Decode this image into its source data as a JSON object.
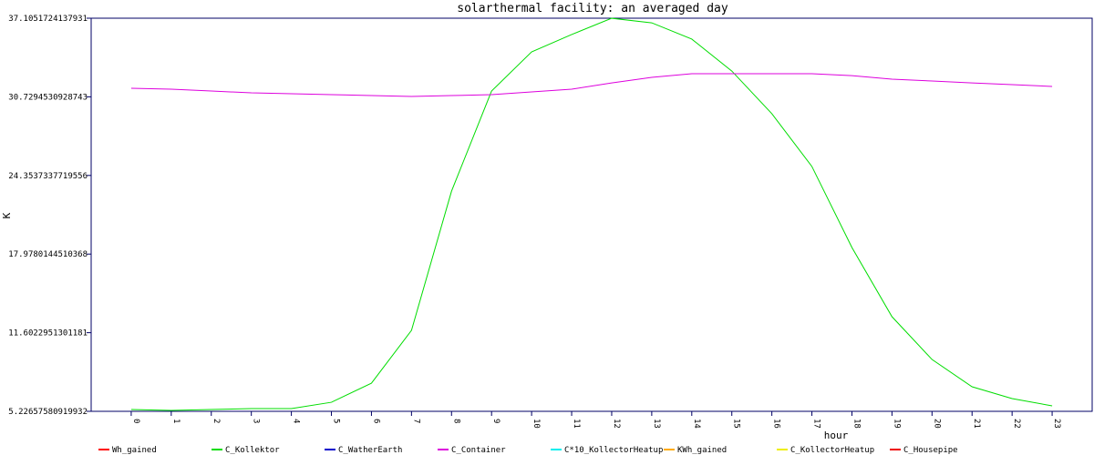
{
  "chart_data": {
    "type": "line",
    "title": "solarthermal facility: an averaged day",
    "x_label": "hour",
    "y_label": "K",
    "categories": [
      "0",
      "1",
      "2",
      "3",
      "4",
      "5",
      "6",
      "7",
      "8",
      "9",
      "10",
      "11",
      "12",
      "13",
      "14",
      "15",
      "16",
      "17",
      "18",
      "19",
      "20",
      "21",
      "22",
      "23"
    ],
    "ylim": [
      5.22657580919932,
      37.1051724137931
    ],
    "yticks": [
      5.22657580919932,
      11.6022951301181,
      17.9780144510368,
      24.3537337719556,
      30.7294530928743,
      37.1051724137931
    ],
    "series": [
      {
        "name": "Wh_gained",
        "color": "#ff0000"
      },
      {
        "name": "C_Kollektor",
        "color": "#00dd00",
        "values": [
          5.37,
          5.3,
          5.37,
          5.45,
          5.45,
          5.96,
          7.51,
          11.79,
          23.08,
          31.2,
          34.37,
          35.78,
          37.1,
          36.73,
          35.41,
          32.82,
          29.36,
          25.08,
          18.51,
          12.9,
          9.43,
          7.22,
          6.26,
          5.67
        ]
      },
      {
        "name": "C_WatherEarth",
        "color": "#0000cc"
      },
      {
        "name": "C_Container",
        "color": "#dd00dd",
        "values": [
          31.42,
          31.35,
          31.2,
          31.05,
          30.98,
          30.91,
          30.83,
          30.76,
          30.83,
          30.91,
          31.13,
          31.35,
          31.86,
          32.31,
          32.6,
          32.6,
          32.6,
          32.6,
          32.45,
          32.16,
          32.01,
          31.86,
          31.72,
          31.57
        ]
      },
      {
        "name": "C*10_KollectorHeatup",
        "color": "#00eeee"
      },
      {
        "name": "KWh_gained",
        "color": "#ffaa00"
      },
      {
        "name": "C_KollectorHeatup",
        "color": "#eeee00"
      },
      {
        "name": "C_Housepipe",
        "color": "#ee0000"
      }
    ]
  }
}
